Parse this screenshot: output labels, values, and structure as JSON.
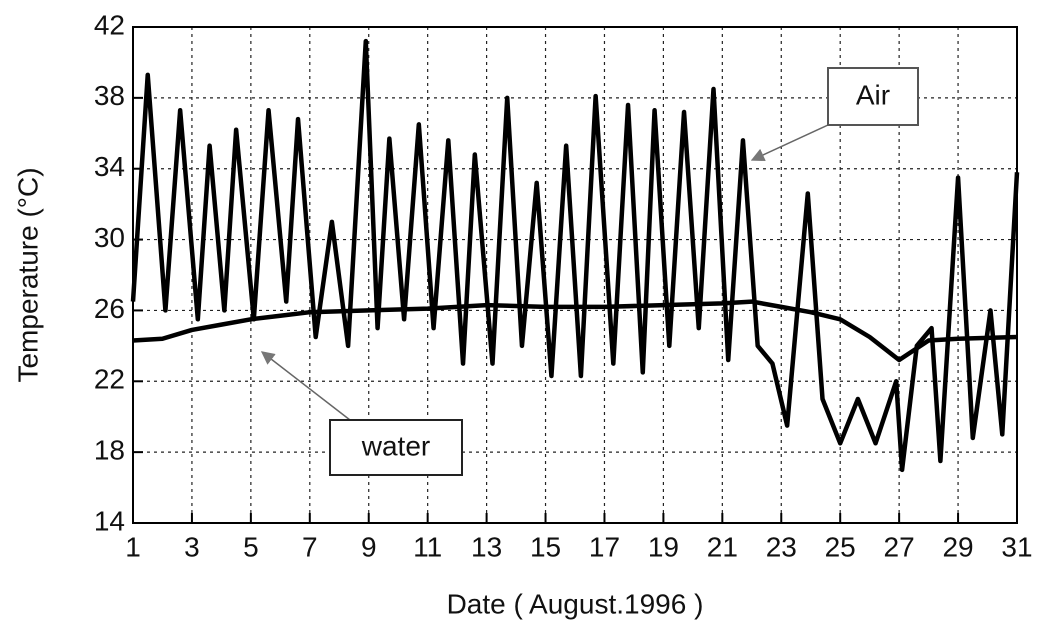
{
  "chart_data": {
    "type": "line",
    "xlabel": "Date ( August.1996 )",
    "ylabel": "Temperature (°C)",
    "xlim": [
      1,
      31
    ],
    "xticks": [
      1,
      3,
      5,
      7,
      9,
      11,
      13,
      15,
      17,
      19,
      21,
      23,
      25,
      27,
      29,
      31
    ],
    "ylim": [
      14,
      42
    ],
    "yticks": [
      14,
      18,
      22,
      26,
      30,
      34,
      38,
      42
    ],
    "grid": true,
    "series": [
      {
        "name": "Air",
        "color": "#000000",
        "x": [
          1,
          1.5,
          2.1,
          2.6,
          3.2,
          3.6,
          4.1,
          4.5,
          5.1,
          5.6,
          6.2,
          6.6,
          7.2,
          7.75,
          8.3,
          8.9,
          9.3,
          9.7,
          10.2,
          10.7,
          11.2,
          11.7,
          12.2,
          12.6,
          13.2,
          13.7,
          14.2,
          14.7,
          15.2,
          15.7,
          16.2,
          16.7,
          17.3,
          17.8,
          18.3,
          18.7,
          19.2,
          19.7,
          20.2,
          20.7,
          21.2,
          21.7,
          22.2,
          22.7,
          23.2,
          23.9,
          24.4,
          25,
          25.6,
          26.2,
          26.9,
          27.1,
          27.6,
          28.1,
          28.4,
          29,
          29.5,
          30.1,
          30.5,
          31
        ],
        "values": [
          26.5,
          39.3,
          26,
          37.3,
          25.5,
          35.3,
          26,
          36.2,
          25.5,
          37.3,
          26.5,
          36.8,
          24.5,
          31,
          24,
          41.2,
          25,
          35.7,
          25.5,
          36.5,
          25,
          35.6,
          23,
          34.8,
          23,
          38,
          24,
          33.2,
          22.3,
          35.3,
          22.3,
          38.1,
          23,
          37.6,
          22.5,
          37.3,
          24,
          37.2,
          25,
          38.5,
          23.2,
          35.6,
          24,
          23,
          19.5,
          32.6,
          21,
          18.5,
          21,
          18.5,
          22,
          17,
          24,
          25,
          17.5,
          33.5,
          18.8,
          26,
          19,
          33.8
        ]
      },
      {
        "name": "water",
        "color": "#000000",
        "x": [
          1,
          2,
          3,
          4,
          5,
          6,
          7,
          9,
          11,
          13,
          15,
          17,
          19,
          21,
          22,
          23,
          24,
          25,
          26,
          27,
          28,
          29,
          31
        ],
        "values": [
          24.3,
          24.4,
          24.9,
          25.2,
          25.5,
          25.7,
          25.9,
          26,
          26.1,
          26.3,
          26.2,
          26.2,
          26.3,
          26.4,
          26.5,
          26.2,
          25.9,
          25.5,
          24.5,
          23.2,
          24.3,
          24.4,
          24.5
        ]
      }
    ]
  }
}
